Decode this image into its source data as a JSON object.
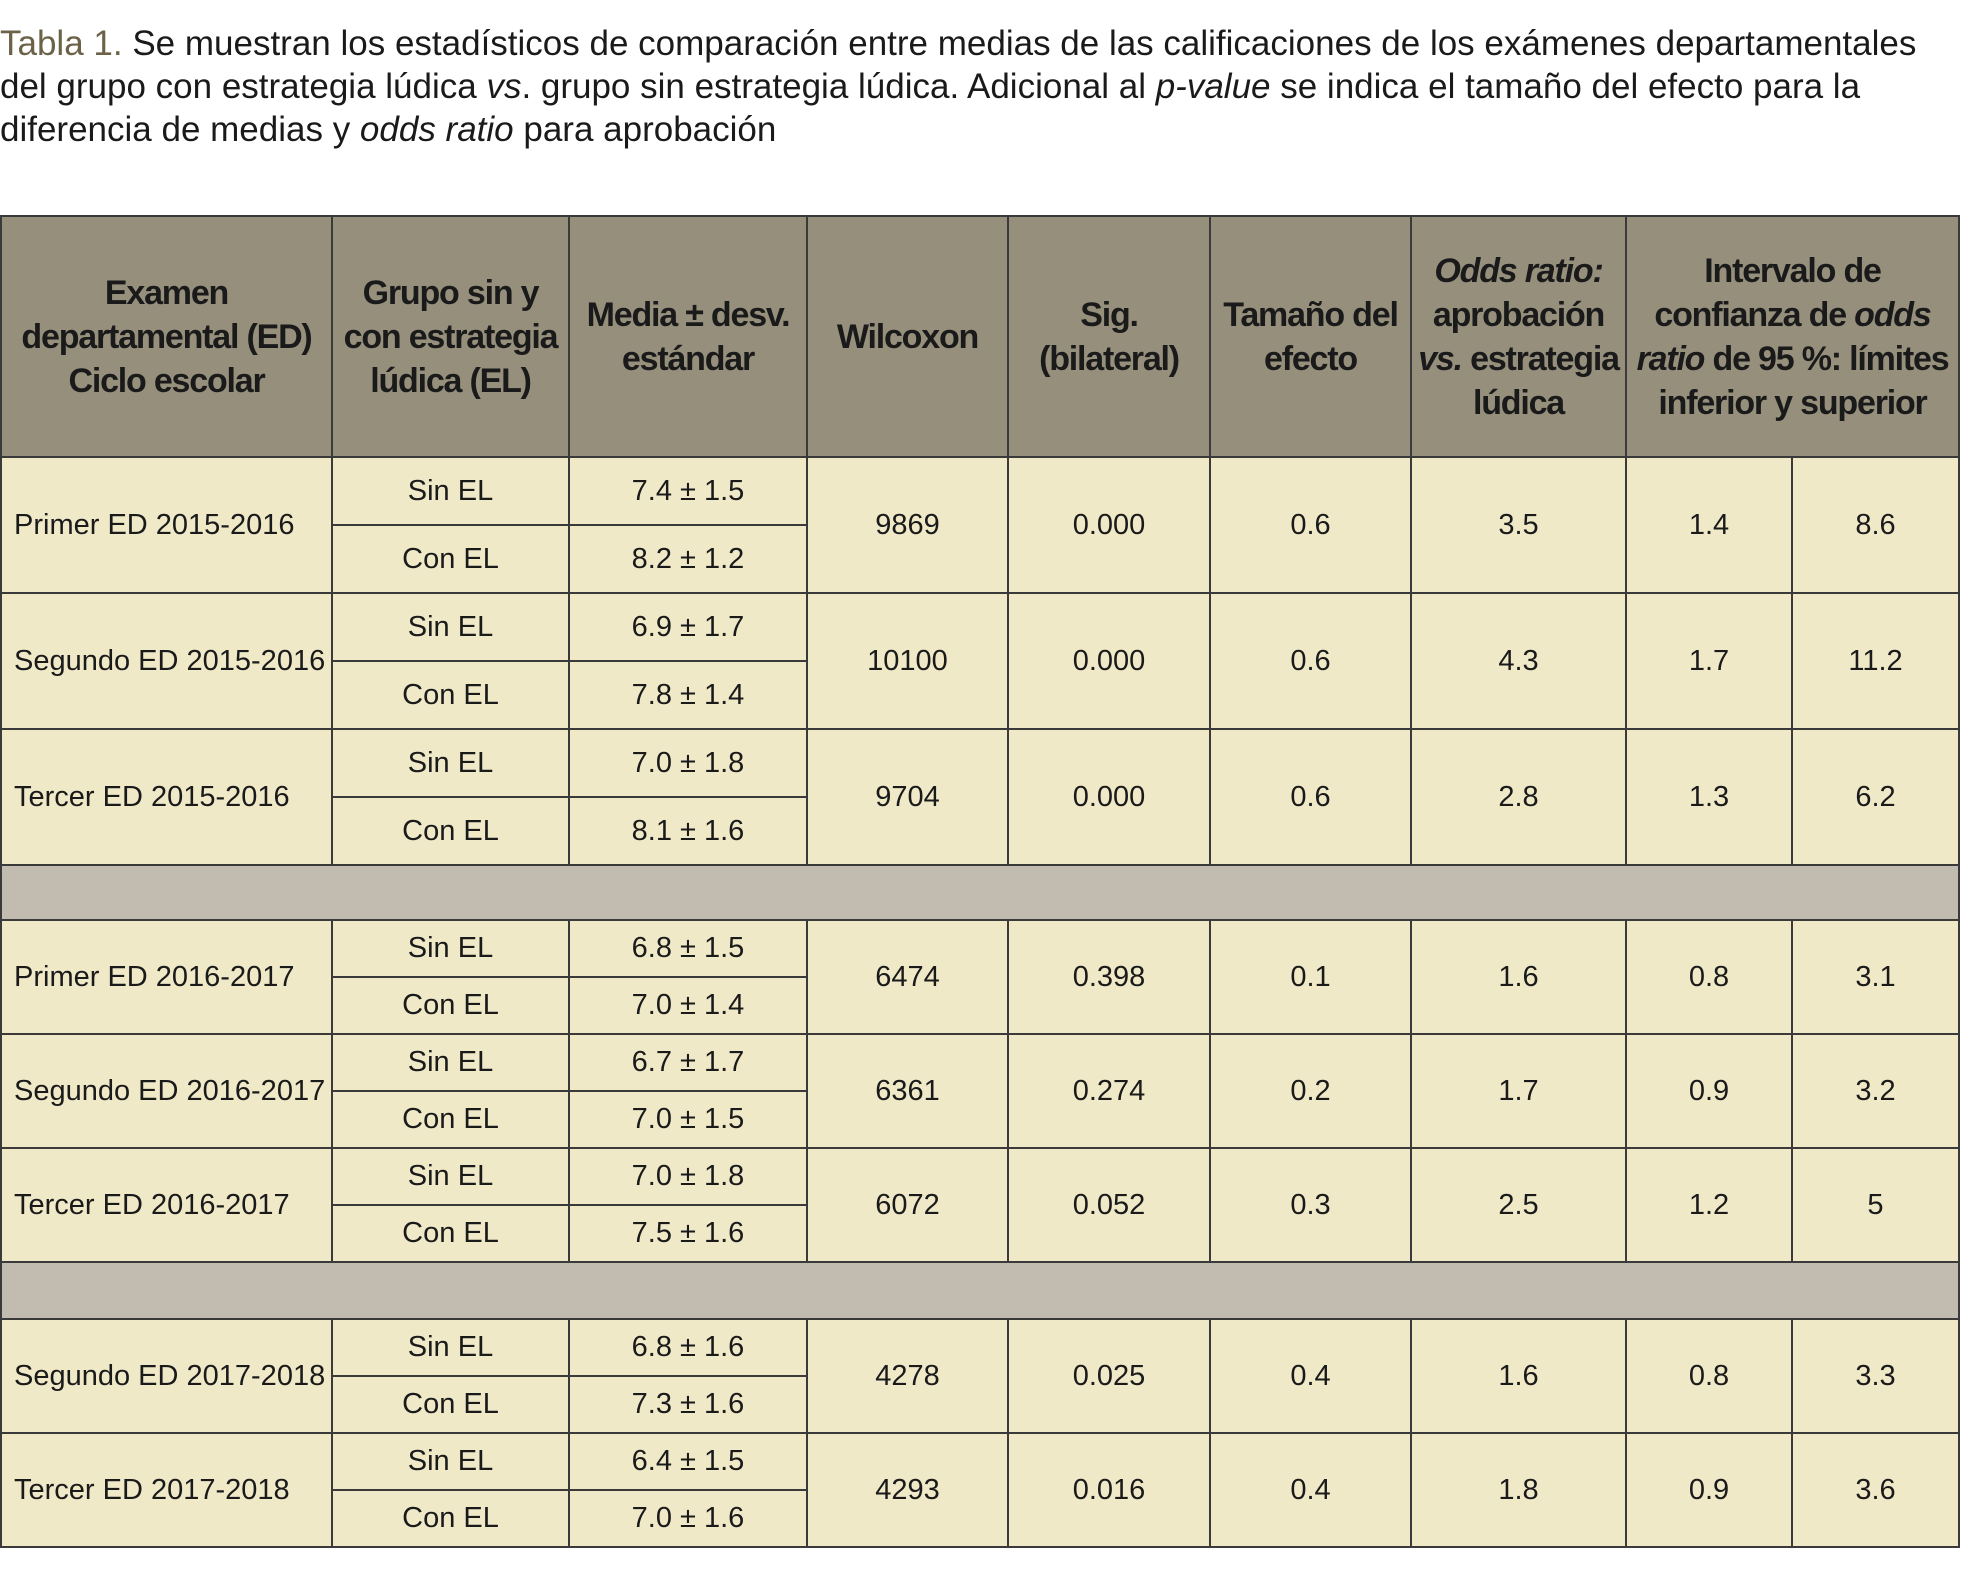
{
  "caption": {
    "label": "Tabla 1.",
    "parts": [
      "Se muestran los estadísticos de comparación entre medias de las calificaciones de los exámenes departamentales del grupo con estrategia lúdica ",
      "vs",
      ". grupo sin estrategia lúdica. Adicional al ",
      "p-value",
      " se indica el tamaño del efecto para la diferencia de medias y ",
      "odds ratio",
      " para aprobación"
    ]
  },
  "table": {
    "header": [
      [
        "Examen departamental (ED)",
        "Ciclo escolar"
      ],
      [
        "Grupo sin y con estrategia lúdica (EL)"
      ],
      [
        "Media ± desv. estándar"
      ],
      [
        "Wilcoxon"
      ],
      [
        "Sig. (bilateral)"
      ],
      [
        "Tamaño del efecto"
      ],
      [
        "Odds ratio:",
        "aprobación",
        "vs.",
        "estrategia lúdica"
      ],
      [
        "Intervalo de confianza de",
        "odds ratio",
        "de 95 %: límites inferior y superior"
      ]
    ],
    "sections": [
      [
        {
          "exam": "Primer ED 2015-2016",
          "groups": [
            [
              "Sin EL",
              "7.4 ± 1.5"
            ],
            [
              "Con EL",
              "8.2 ± 1.2"
            ]
          ],
          "stats": [
            "9869",
            "0.000",
            "0.6",
            "3.5",
            "1.4",
            "8.6"
          ]
        },
        {
          "exam": "Segundo ED 2015-2016",
          "groups": [
            [
              "Sin EL",
              "6.9 ± 1.7"
            ],
            [
              "Con EL",
              "7.8 ± 1.4"
            ]
          ],
          "stats": [
            "10100",
            "0.000",
            "0.6",
            "4.3",
            "1.7",
            "11.2"
          ]
        },
        {
          "exam": "Tercer ED 2015-2016",
          "groups": [
            [
              "Sin EL",
              "7.0 ± 1.8"
            ],
            [
              "Con EL",
              "8.1 ± 1.6"
            ]
          ],
          "stats": [
            "9704",
            "0.000",
            "0.6",
            "2.8",
            "1.3",
            "6.2"
          ]
        }
      ],
      [
        {
          "exam": "Primer ED 2016-2017",
          "groups": [
            [
              "Sin EL",
              "6.8 ± 1.5"
            ],
            [
              "Con EL",
              "7.0 ± 1.4"
            ]
          ],
          "stats": [
            "6474",
            "0.398",
            "0.1",
            "1.6",
            "0.8",
            "3.1"
          ]
        },
        {
          "exam": "Segundo ED 2016-2017",
          "groups": [
            [
              "Sin EL",
              "6.7 ± 1.7"
            ],
            [
              "Con EL",
              "7.0 ± 1.5"
            ]
          ],
          "stats": [
            "6361",
            "0.274",
            "0.2",
            "1.7",
            "0.9",
            "3.2"
          ]
        },
        {
          "exam": "Tercer ED 2016-2017",
          "groups": [
            [
              "Sin EL",
              "7.0 ± 1.8"
            ],
            [
              "Con EL",
              "7.5 ± 1.6"
            ]
          ],
          "stats": [
            "6072",
            "0.052",
            "0.3",
            "2.5",
            "1.2",
            "5"
          ]
        }
      ],
      [
        {
          "exam": "Segundo ED 2017-2018",
          "groups": [
            [
              "Sin EL",
              "6.8 ± 1.6"
            ],
            [
              "Con EL",
              "7.3 ± 1.6"
            ]
          ],
          "stats": [
            "4278",
            "0.025",
            "0.4",
            "1.6",
            "0.8",
            "3.3"
          ]
        },
        {
          "exam": "Tercer ED 2017-2018",
          "groups": [
            [
              "Sin EL",
              "6.4 ± 1.5"
            ],
            [
              "Con EL",
              "7.0 ± 1.6"
            ]
          ],
          "stats": [
            "4293",
            "0.016",
            "0.4",
            "1.8",
            "0.9",
            "3.6"
          ]
        }
      ]
    ]
  }
}
